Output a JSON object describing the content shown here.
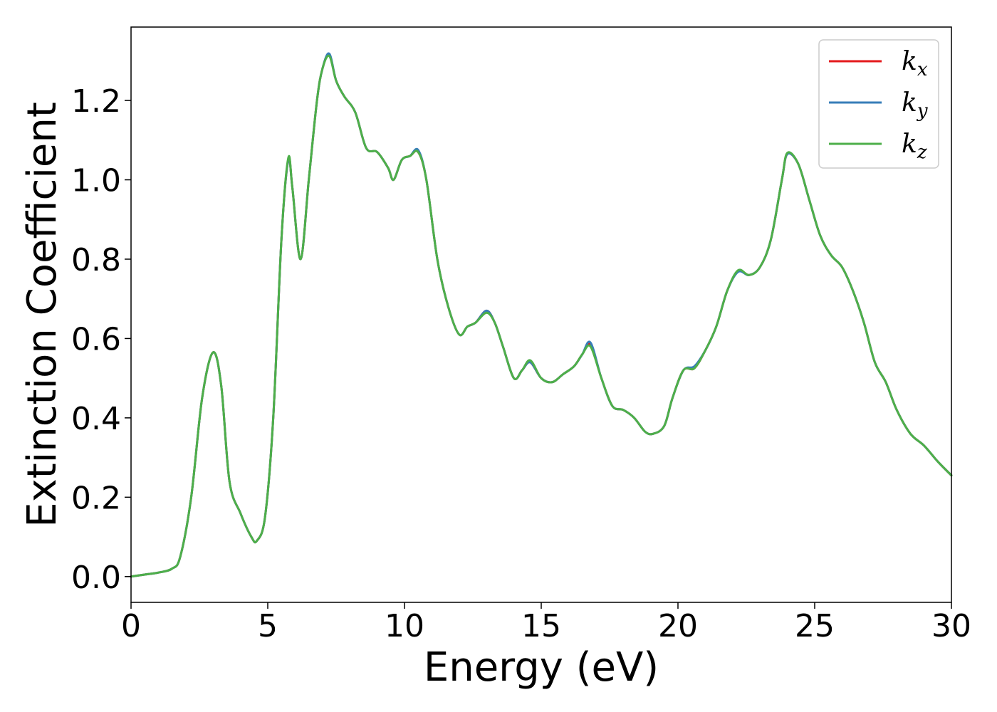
{
  "chart_data": {
    "type": "line",
    "title": "",
    "xlabel": "Energy (eV)",
    "ylabel": "Extinction Coefficient",
    "xlim": [
      0,
      30
    ],
    "ylim": [
      -0.065,
      1.385
    ],
    "xticks": [
      0,
      5,
      10,
      15,
      20,
      25,
      30
    ],
    "xtick_labels": [
      "0",
      "5",
      "10",
      "15",
      "20",
      "25",
      "30"
    ],
    "yticks": [
      0.0,
      0.2,
      0.4,
      0.6,
      0.8,
      1.0,
      1.2
    ],
    "ytick_labels": [
      "0.0",
      "0.2",
      "0.4",
      "0.6",
      "0.8",
      "1.0",
      "1.2"
    ],
    "grid": false,
    "legend_position": "top-right",
    "x": [
      0,
      0.5,
      1.0,
      1.5,
      1.8,
      2.2,
      2.6,
      3.0,
      3.3,
      3.6,
      4.0,
      4.4,
      4.6,
      4.9,
      5.2,
      5.5,
      5.75,
      5.9,
      6.2,
      6.5,
      6.8,
      7.0,
      7.25,
      7.5,
      7.8,
      8.2,
      8.6,
      9.0,
      9.4,
      9.6,
      9.9,
      10.2,
      10.5,
      10.8,
      11.2,
      11.6,
      12.0,
      12.3,
      12.6,
      13.0,
      13.3,
      13.6,
      14.0,
      14.3,
      14.6,
      15.0,
      15.4,
      15.8,
      16.2,
      16.5,
      16.8,
      17.2,
      17.6,
      18.0,
      18.4,
      18.8,
      19.1,
      19.5,
      19.8,
      20.2,
      20.6,
      21.0,
      21.4,
      21.8,
      22.2,
      22.6,
      23.0,
      23.4,
      23.8,
      24.0,
      24.4,
      24.8,
      25.2,
      25.6,
      26.0,
      26.4,
      26.8,
      27.2,
      27.6,
      28.0,
      28.5,
      29.0,
      29.5,
      30.0
    ],
    "series": [
      {
        "name": "k_x",
        "legend_base": "k",
        "legend_sub": "x",
        "color": "#e41a1c",
        "values": [
          0.0,
          0.005,
          0.01,
          0.02,
          0.05,
          0.2,
          0.45,
          0.565,
          0.48,
          0.24,
          0.16,
          0.1,
          0.09,
          0.15,
          0.4,
          0.85,
          1.05,
          0.98,
          0.8,
          1.0,
          1.2,
          1.28,
          1.315,
          1.25,
          1.21,
          1.17,
          1.08,
          1.07,
          1.03,
          1.0,
          1.05,
          1.06,
          1.07,
          1.0,
          0.8,
          0.68,
          0.61,
          0.63,
          0.64,
          0.67,
          0.64,
          0.58,
          0.5,
          0.52,
          0.54,
          0.5,
          0.49,
          0.51,
          0.53,
          0.56,
          0.585,
          0.5,
          0.43,
          0.42,
          0.4,
          0.365,
          0.36,
          0.38,
          0.45,
          0.52,
          0.525,
          0.57,
          0.63,
          0.72,
          0.77,
          0.76,
          0.78,
          0.85,
          1.0,
          1.065,
          1.04,
          0.95,
          0.86,
          0.81,
          0.78,
          0.72,
          0.64,
          0.54,
          0.49,
          0.42,
          0.36,
          0.33,
          0.29,
          0.255
        ]
      },
      {
        "name": "k_y",
        "legend_base": "k",
        "legend_sub": "y",
        "color": "#377eb8",
        "values": [
          0.0,
          0.005,
          0.01,
          0.02,
          0.05,
          0.2,
          0.45,
          0.565,
          0.48,
          0.24,
          0.16,
          0.1,
          0.09,
          0.15,
          0.4,
          0.85,
          1.05,
          0.98,
          0.8,
          1.0,
          1.2,
          1.28,
          1.318,
          1.25,
          1.21,
          1.17,
          1.08,
          1.07,
          1.03,
          1.0,
          1.05,
          1.06,
          1.075,
          1.0,
          0.8,
          0.68,
          0.61,
          0.63,
          0.64,
          0.67,
          0.64,
          0.58,
          0.5,
          0.52,
          0.54,
          0.5,
          0.49,
          0.51,
          0.53,
          0.56,
          0.59,
          0.5,
          0.43,
          0.42,
          0.4,
          0.365,
          0.36,
          0.38,
          0.45,
          0.52,
          0.53,
          0.57,
          0.63,
          0.72,
          0.768,
          0.76,
          0.78,
          0.85,
          1.0,
          1.065,
          1.04,
          0.95,
          0.86,
          0.81,
          0.78,
          0.72,
          0.64,
          0.54,
          0.49,
          0.42,
          0.36,
          0.33,
          0.29,
          0.255
        ]
      },
      {
        "name": "k_z",
        "legend_base": "k",
        "legend_sub": "z",
        "color": "#4daf4a",
        "values": [
          0.0,
          0.005,
          0.01,
          0.02,
          0.05,
          0.2,
          0.45,
          0.565,
          0.48,
          0.24,
          0.16,
          0.1,
          0.09,
          0.15,
          0.4,
          0.85,
          1.055,
          0.98,
          0.8,
          1.0,
          1.2,
          1.28,
          1.312,
          1.25,
          1.21,
          1.17,
          1.08,
          1.07,
          1.03,
          1.0,
          1.05,
          1.06,
          1.07,
          1.0,
          0.8,
          0.68,
          0.61,
          0.63,
          0.64,
          0.665,
          0.64,
          0.58,
          0.5,
          0.52,
          0.545,
          0.5,
          0.49,
          0.51,
          0.53,
          0.56,
          0.58,
          0.5,
          0.43,
          0.42,
          0.4,
          0.365,
          0.36,
          0.38,
          0.45,
          0.52,
          0.525,
          0.57,
          0.63,
          0.72,
          0.772,
          0.76,
          0.78,
          0.85,
          1.0,
          1.068,
          1.04,
          0.95,
          0.86,
          0.81,
          0.78,
          0.72,
          0.64,
          0.54,
          0.49,
          0.42,
          0.36,
          0.33,
          0.29,
          0.255
        ]
      }
    ]
  }
}
